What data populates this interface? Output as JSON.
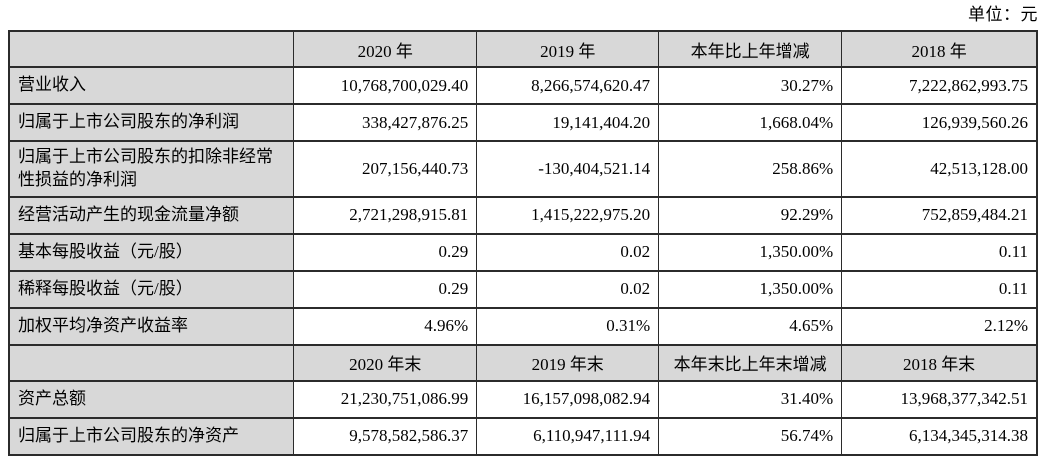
{
  "unit_label": "单位：元",
  "colors": {
    "page_bg": "#ffffff",
    "header_bg": "#d8d8d8",
    "label_bg": "#d8d8d8",
    "border": "#2b2b2b",
    "text": "#000000"
  },
  "table": {
    "sections": [
      {
        "header": [
          "",
          "2020 年",
          "2019 年",
          "本年比上年增减",
          "2018 年"
        ],
        "rows": [
          {
            "label": "营业收入",
            "values": [
              "10,768,700,029.40",
              "8,266,574,620.47",
              "30.27%",
              "7,222,862,993.75"
            ]
          },
          {
            "label": "归属于上市公司股东的净利润",
            "values": [
              "338,427,876.25",
              "19,141,404.20",
              "1,668.04%",
              "126,939,560.26"
            ]
          },
          {
            "label": "归属于上市公司股东的扣除非经常性损益的净利润",
            "values": [
              "207,156,440.73",
              "-130,404,521.14",
              "258.86%",
              "42,513,128.00"
            ]
          },
          {
            "label": "经营活动产生的现金流量净额",
            "values": [
              "2,721,298,915.81",
              "1,415,222,975.20",
              "92.29%",
              "752,859,484.21"
            ]
          },
          {
            "label": "基本每股收益（元/股）",
            "values": [
              "0.29",
              "0.02",
              "1,350.00%",
              "0.11"
            ]
          },
          {
            "label": "稀释每股收益（元/股）",
            "values": [
              "0.29",
              "0.02",
              "1,350.00%",
              "0.11"
            ]
          },
          {
            "label": "加权平均净资产收益率",
            "values": [
              "4.96%",
              "0.31%",
              "4.65%",
              "2.12%"
            ]
          }
        ]
      },
      {
        "header": [
          "",
          "2020 年末",
          "2019 年末",
          "本年末比上年末增减",
          "2018 年末"
        ],
        "rows": [
          {
            "label": "资产总额",
            "values": [
              "21,230,751,086.99",
              "16,157,098,082.94",
              "31.40%",
              "13,968,377,342.51"
            ]
          },
          {
            "label": "归属于上市公司股东的净资产",
            "values": [
              "9,578,582,586.37",
              "6,110,947,111.94",
              "56.74%",
              "6,134,345,314.38"
            ]
          }
        ]
      }
    ]
  }
}
